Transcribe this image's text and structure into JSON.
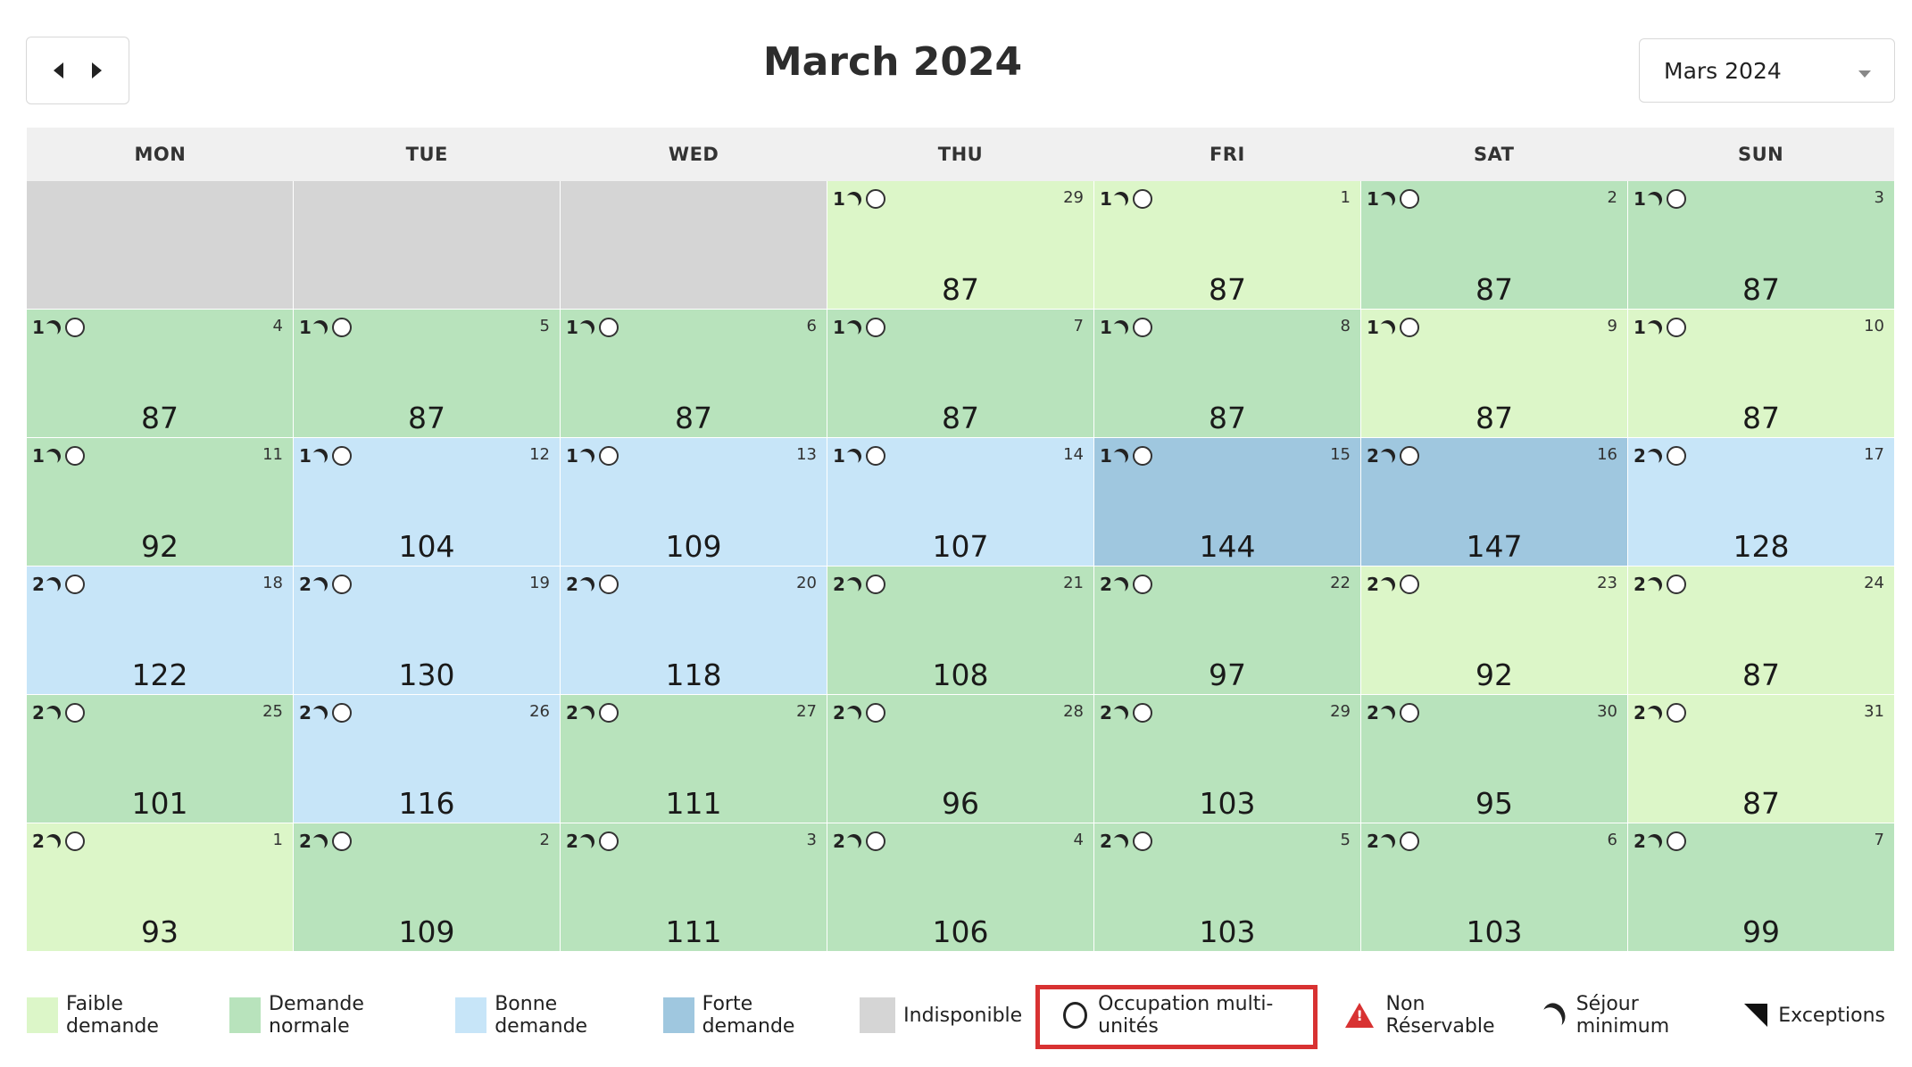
{
  "header": {
    "title": "March 2024",
    "select_value": "Mars 2024"
  },
  "weekdays": [
    "MON",
    "TUE",
    "WED",
    "THU",
    "FRI",
    "SAT",
    "SUN"
  ],
  "weeks": [
    [
      {
        "status": "indispo"
      },
      {
        "status": "indispo"
      },
      {
        "status": "indispo"
      },
      {
        "status": "faible",
        "min": "1",
        "day": "29",
        "price": "87"
      },
      {
        "status": "faible",
        "min": "1",
        "day": "1",
        "price": "87"
      },
      {
        "status": "normale",
        "min": "1",
        "day": "2",
        "price": "87"
      },
      {
        "status": "normale",
        "min": "1",
        "day": "3",
        "price": "87"
      }
    ],
    [
      {
        "status": "normale",
        "min": "1",
        "day": "4",
        "price": "87"
      },
      {
        "status": "normale",
        "min": "1",
        "day": "5",
        "price": "87"
      },
      {
        "status": "normale",
        "min": "1",
        "day": "6",
        "price": "87"
      },
      {
        "status": "normale",
        "min": "1",
        "day": "7",
        "price": "87"
      },
      {
        "status": "normale",
        "min": "1",
        "day": "8",
        "price": "87"
      },
      {
        "status": "faible",
        "min": "1",
        "day": "9",
        "price": "87"
      },
      {
        "status": "faible",
        "min": "1",
        "day": "10",
        "price": "87"
      }
    ],
    [
      {
        "status": "normale",
        "min": "1",
        "day": "11",
        "price": "92"
      },
      {
        "status": "bonne",
        "min": "1",
        "day": "12",
        "price": "104"
      },
      {
        "status": "bonne",
        "min": "1",
        "day": "13",
        "price": "109"
      },
      {
        "status": "bonne",
        "min": "1",
        "day": "14",
        "price": "107"
      },
      {
        "status": "forte",
        "min": "1",
        "day": "15",
        "price": "144"
      },
      {
        "status": "forte",
        "min": "2",
        "day": "16",
        "price": "147"
      },
      {
        "status": "bonne",
        "min": "2",
        "day": "17",
        "price": "128"
      }
    ],
    [
      {
        "status": "bonne",
        "min": "2",
        "day": "18",
        "price": "122"
      },
      {
        "status": "bonne",
        "min": "2",
        "day": "19",
        "price": "130"
      },
      {
        "status": "bonne",
        "min": "2",
        "day": "20",
        "price": "118"
      },
      {
        "status": "normale",
        "min": "2",
        "day": "21",
        "price": "108"
      },
      {
        "status": "normale",
        "min": "2",
        "day": "22",
        "price": "97"
      },
      {
        "status": "faible",
        "min": "2",
        "day": "23",
        "price": "92"
      },
      {
        "status": "faible",
        "min": "2",
        "day": "24",
        "price": "87"
      }
    ],
    [
      {
        "status": "normale",
        "min": "2",
        "day": "25",
        "price": "101"
      },
      {
        "status": "bonne",
        "min": "2",
        "day": "26",
        "price": "116"
      },
      {
        "status": "normale",
        "min": "2",
        "day": "27",
        "price": "111"
      },
      {
        "status": "normale",
        "min": "2",
        "day": "28",
        "price": "96"
      },
      {
        "status": "normale",
        "min": "2",
        "day": "29",
        "price": "103"
      },
      {
        "status": "normale",
        "min": "2",
        "day": "30",
        "price": "95"
      },
      {
        "status": "faible",
        "min": "2",
        "day": "31",
        "price": "87"
      }
    ],
    [
      {
        "status": "faible",
        "min": "2",
        "day": "1",
        "price": "93"
      },
      {
        "status": "normale",
        "min": "2",
        "day": "2",
        "price": "109"
      },
      {
        "status": "normale",
        "min": "2",
        "day": "3",
        "price": "111"
      },
      {
        "status": "normale",
        "min": "2",
        "day": "4",
        "price": "106"
      },
      {
        "status": "normale",
        "min": "2",
        "day": "5",
        "price": "103"
      },
      {
        "status": "normale",
        "min": "2",
        "day": "6",
        "price": "103"
      },
      {
        "status": "normale",
        "min": "2",
        "day": "7",
        "price": "99"
      }
    ]
  ],
  "legend": {
    "faible": "Faible demande",
    "normale": "Demande normale",
    "bonne": "Bonne demande",
    "forte": "Forte demande",
    "indispo": "Indisponible",
    "occupation": "Occupation multi-unités",
    "non_reservable": "Non Réservable",
    "sejour": "Séjour minimum",
    "exceptions": "Exceptions"
  },
  "colors": {
    "faible": "#dcf6c8",
    "normale": "#b8e3bc",
    "bonne": "#c7e5f8",
    "forte": "#9fc7df",
    "indispo": "#d5d5d5",
    "highlight": "#d83232"
  },
  "icons": {
    "prev": "chevron-left-icon",
    "next": "chevron-right-icon",
    "dropdown": "caret-down-icon",
    "min_stay": "moon-icon",
    "occupation": "circle-icon",
    "non_reservable": "warning-icon",
    "exceptions": "corner-triangle-icon"
  }
}
